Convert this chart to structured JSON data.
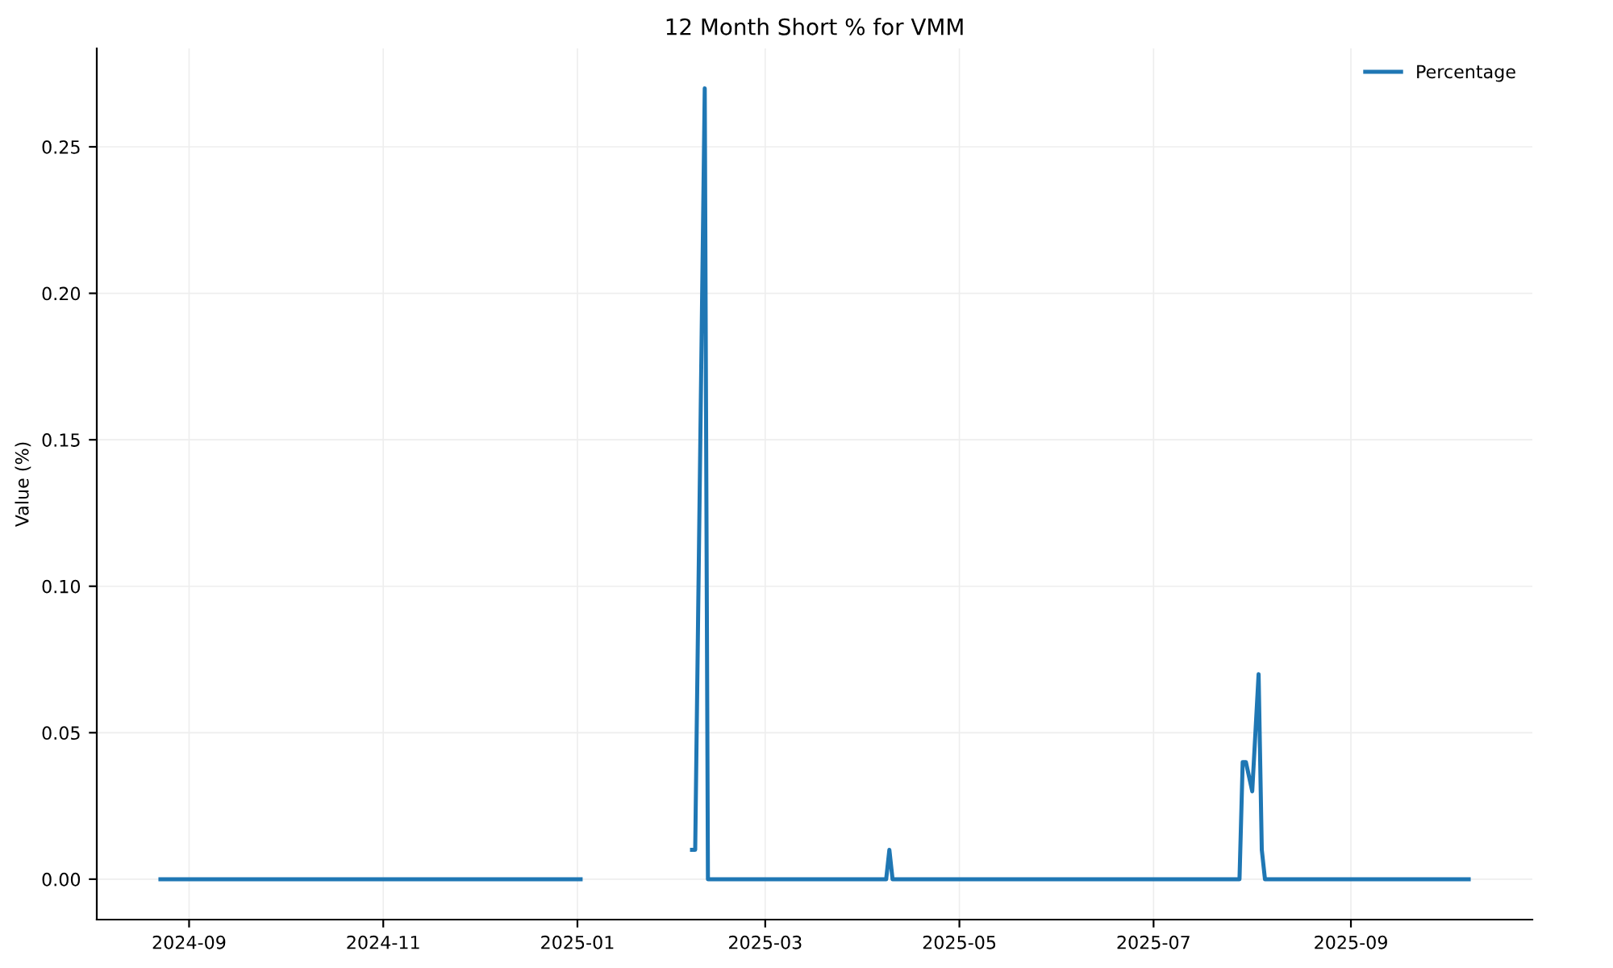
{
  "chart_data": {
    "type": "line",
    "title": "12 Month Short % for VMM",
    "ylabel": "Value (%)",
    "x": [
      "2024-08-23",
      "2025-01-02",
      "2025-01-20",
      "2025-02-06",
      "2025-02-07",
      "2025-02-10",
      "2025-02-11",
      "2025-04-08",
      "2025-04-09",
      "2025-04-10",
      "2025-07-28",
      "2025-07-29",
      "2025-07-30",
      "2025-08-01",
      "2025-08-03",
      "2025-08-04",
      "2025-08-05",
      "2025-10-08"
    ],
    "series": [
      {
        "name": "Percentage",
        "color": "#1f77b4",
        "values": [
          0,
          0,
          null,
          0.01,
          0.01,
          0.27,
          0,
          0,
          0.01,
          0,
          0,
          0.04,
          0.04,
          0.03,
          0.07,
          0.01,
          0,
          0
        ]
      }
    ],
    "xlim": [
      "2024-08-03",
      "2025-10-28"
    ],
    "ylim": [
      -0.0138,
      0.2836
    ],
    "xticks": [
      {
        "value": "2024-09-01",
        "label": "2024-09"
      },
      {
        "value": "2024-11-01",
        "label": "2024-11"
      },
      {
        "value": "2025-01-01",
        "label": "2025-01"
      },
      {
        "value": "2025-03-01",
        "label": "2025-03"
      },
      {
        "value": "2025-05-01",
        "label": "2025-05"
      },
      {
        "value": "2025-07-01",
        "label": "2025-07"
      },
      {
        "value": "2025-09-01",
        "label": "2025-09"
      }
    ],
    "yticks": [
      {
        "value": 0,
        "label": "0.00"
      },
      {
        "value": 0.05,
        "label": "0.05"
      },
      {
        "value": 0.1,
        "label": "0.10"
      },
      {
        "value": 0.15,
        "label": "0.15"
      },
      {
        "value": 0.2,
        "label": "0.20"
      },
      {
        "value": 0.25,
        "label": "0.25"
      }
    ],
    "grid": true,
    "legend": "top right",
    "marker": "none",
    "line_style": "solid"
  }
}
